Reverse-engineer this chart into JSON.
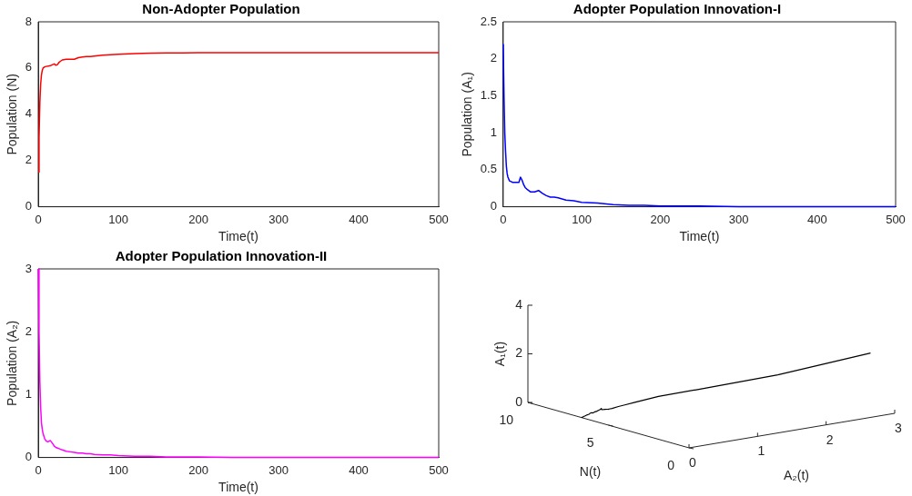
{
  "chart_data": [
    {
      "type": "line",
      "title": "Non-Adopter Population",
      "xlabel": "Time(t)",
      "ylabel": "Population (N)",
      "xlim": [
        0,
        500
      ],
      "xticks": [
        0,
        100,
        200,
        300,
        400,
        500
      ],
      "ylim": [
        0,
        8
      ],
      "yticks": [
        0,
        2,
        4,
        6,
        8
      ],
      "grid": false,
      "marker": "none",
      "x": [
        0,
        1,
        2,
        3,
        4,
        5,
        6,
        8,
        10,
        12,
        15,
        18,
        20,
        22,
        24,
        26,
        28,
        30,
        35,
        40,
        45,
        50,
        55,
        60,
        65,
        70,
        80,
        90,
        100,
        120,
        140,
        160,
        180,
        200,
        250,
        300,
        350,
        400,
        450,
        500
      ],
      "series": [
        {
          "color": "#ff0000",
          "values": [
            1.5,
            3,
            4.5,
            5.3,
            5.7,
            5.9,
            6.0,
            6.05,
            6.07,
            6.08,
            6.1,
            6.15,
            6.18,
            6.12,
            6.15,
            6.25,
            6.3,
            6.35,
            6.38,
            6.38,
            6.38,
            6.45,
            6.48,
            6.5,
            6.5,
            6.52,
            6.56,
            6.58,
            6.6,
            6.62,
            6.64,
            6.65,
            6.65,
            6.66,
            6.66,
            6.66,
            6.66,
            6.66,
            6.66,
            6.66
          ]
        }
      ]
    },
    {
      "type": "line",
      "title": "Adopter Population Innovation-I",
      "xlabel": "Time(t)",
      "ylabel": "Population (A₁)",
      "xlim": [
        0,
        500
      ],
      "xticks": [
        0,
        100,
        200,
        300,
        400,
        500
      ],
      "ylim": [
        0,
        2.5
      ],
      "yticks": [
        0,
        0.5,
        1,
        1.5,
        2,
        2.5
      ],
      "grid": false,
      "marker": "none",
      "x": [
        0,
        1,
        2,
        3,
        4,
        5,
        6,
        8,
        10,
        12,
        15,
        18,
        20,
        22,
        24,
        26,
        28,
        30,
        35,
        40,
        45,
        50,
        55,
        60,
        65,
        70,
        80,
        90,
        100,
        120,
        140,
        160,
        180,
        200,
        250,
        300,
        350,
        400,
        450,
        500
      ],
      "series": [
        {
          "color": "#0000ff",
          "values": [
            2.2,
            1.5,
            1.0,
            0.75,
            0.55,
            0.45,
            0.4,
            0.35,
            0.34,
            0.33,
            0.33,
            0.33,
            0.33,
            0.4,
            0.36,
            0.3,
            0.26,
            0.24,
            0.2,
            0.2,
            0.22,
            0.18,
            0.15,
            0.13,
            0.13,
            0.12,
            0.09,
            0.08,
            0.06,
            0.05,
            0.03,
            0.02,
            0.02,
            0.01,
            0.01,
            0,
            0,
            0,
            0,
            0
          ]
        }
      ]
    },
    {
      "type": "line",
      "title": "Adopter Population Innovation-II",
      "xlabel": "Time(t)",
      "ylabel": "Population (A₂)",
      "xlim": [
        0,
        500
      ],
      "xticks": [
        0,
        100,
        200,
        300,
        400,
        500
      ],
      "ylim": [
        0,
        3
      ],
      "yticks": [
        0,
        1,
        2,
        3
      ],
      "grid": false,
      "marker": "none",
      "x": [
        0,
        1,
        2,
        3,
        4,
        5,
        6,
        8,
        10,
        12,
        15,
        18,
        20,
        22,
        24,
        26,
        28,
        30,
        35,
        40,
        45,
        50,
        55,
        60,
        65,
        70,
        80,
        90,
        100,
        120,
        140,
        160,
        180,
        200,
        250,
        300,
        350,
        400,
        450,
        500
      ],
      "series": [
        {
          "color": "#ff00ff",
          "values": [
            3.0,
            2.0,
            1.2,
            0.8,
            0.55,
            0.45,
            0.38,
            0.3,
            0.26,
            0.25,
            0.27,
            0.22,
            0.18,
            0.16,
            0.15,
            0.14,
            0.13,
            0.12,
            0.1,
            0.09,
            0.08,
            0.07,
            0.07,
            0.06,
            0.06,
            0.05,
            0.04,
            0.04,
            0.03,
            0.02,
            0.02,
            0.01,
            0.01,
            0.01,
            0,
            0,
            0,
            0,
            0,
            0
          ]
        }
      ]
    },
    {
      "type": "other",
      "xlabel": "A₂(t)",
      "ylabel": "A₁(t)",
      "annotations": [
        "N(t)",
        "0",
        "1",
        "2",
        "3",
        "0",
        "5",
        "10",
        "0",
        "2",
        "4"
      ]
    }
  ]
}
